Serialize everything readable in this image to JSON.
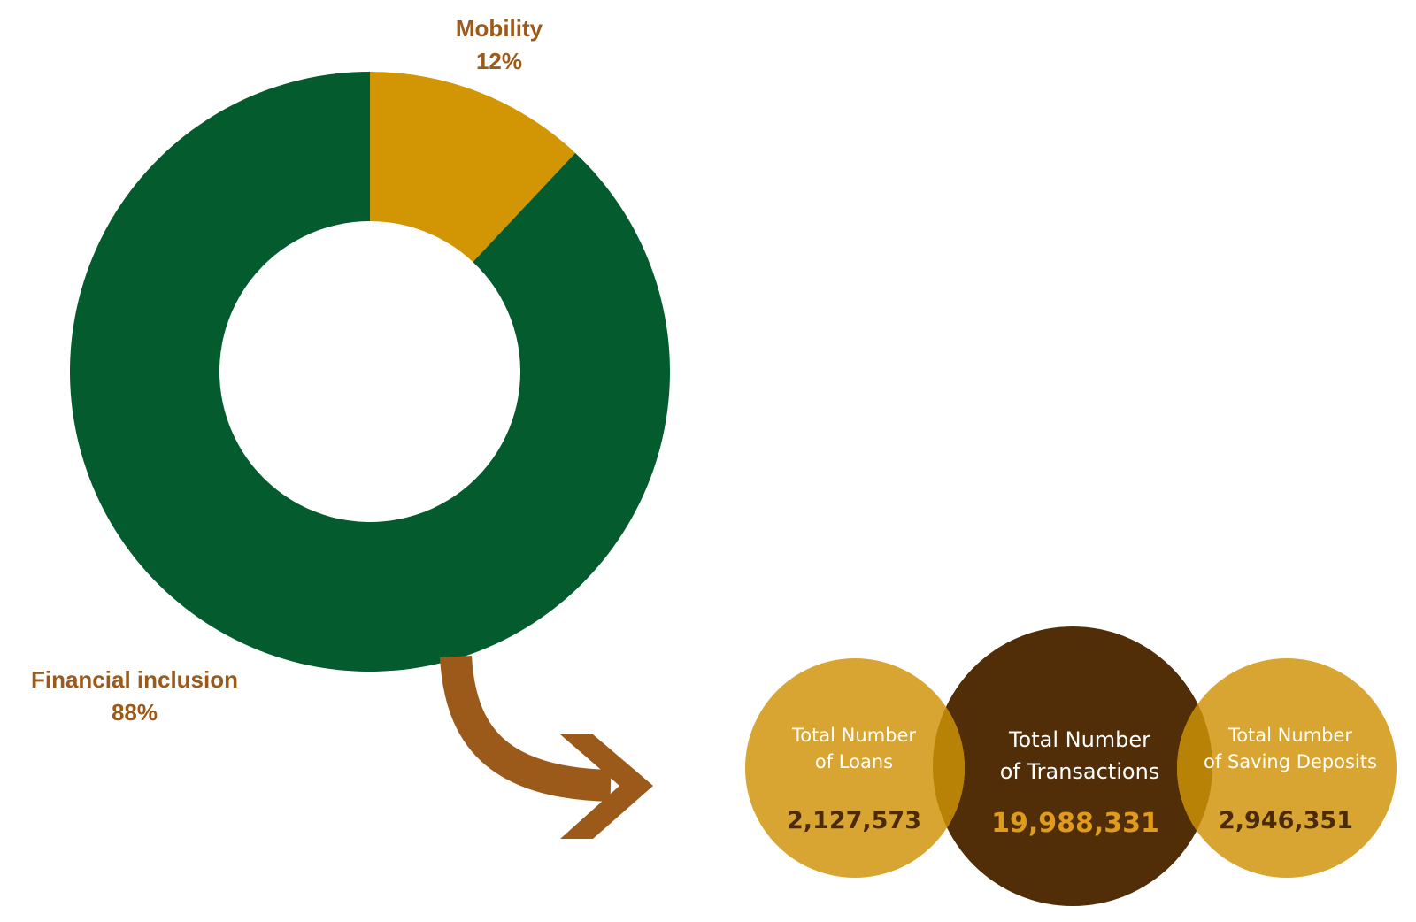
{
  "chart_data": {
    "type": "pie",
    "variant": "donut",
    "slices": [
      {
        "label": "Mobility",
        "value": 12,
        "display": "12%",
        "color": "#D29504"
      },
      {
        "label": "Financial inclusion",
        "value": 88,
        "display": "88%",
        "color": "#045B2D"
      }
    ],
    "label_color": "#9C5A1A"
  },
  "stats": {
    "loans": {
      "title_line1": "Total Number",
      "title_line2": "of Loans",
      "value": "2,127,573",
      "circle_color": "#D8A532",
      "title_color": "#FFFFFF",
      "value_color": "#4A2A08"
    },
    "transactions": {
      "title_line1": "Total Number",
      "title_line2": "of Transactions",
      "value": "19,988,331",
      "circle_color": "#512D08",
      "title_color": "#FFFFFF",
      "value_color": "#E09A1C"
    },
    "savings": {
      "title_line1": "Total Number",
      "title_line2": "of Saving Deposits",
      "value": "2,946,351",
      "circle_color": "#D8A532",
      "title_color": "#FFFFFF",
      "value_color": "#4A2A08"
    },
    "overlap_color": "#B88206"
  },
  "arrow": {
    "icon": "curved-arrow-right-icon",
    "color": "#9C5A1A"
  }
}
